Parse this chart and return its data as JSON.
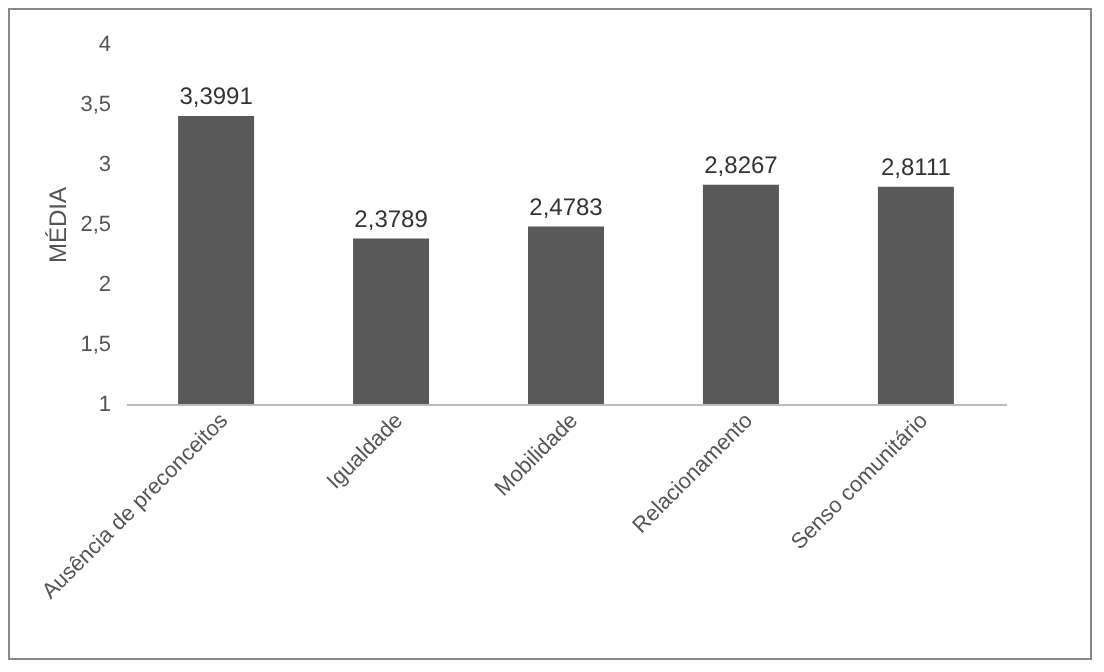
{
  "chart_data": {
    "type": "bar",
    "ylabel": "MÉDIA",
    "categories": [
      "Ausência de preconceitos",
      "Igualdade",
      "Mobilidade",
      "Relacionamento",
      "Senso comunitário"
    ],
    "values": [
      3.3991,
      2.3789,
      2.4783,
      2.8267,
      2.8111
    ],
    "value_labels": [
      "3,3991",
      "2,3789",
      "2,4783",
      "2,8267",
      "2,8111"
    ],
    "color": "#595959",
    "ylim": [
      1,
      4
    ],
    "yticks": [
      1,
      {
        "value": 1.5,
        "label": "1,5"
      },
      2,
      {
        "value": 2.5,
        "label": "2,5"
      },
      3,
      {
        "value": 3.5,
        "label": "3,5"
      },
      4
    ],
    "grid": false
  }
}
